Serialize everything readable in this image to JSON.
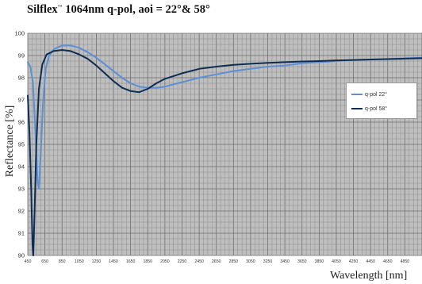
{
  "chart_data": {
    "type": "line",
    "title_main": "Silflex",
    "title_mark": "™",
    "title_rest": " 1064nm q-pol, aoi = 22°& 58°",
    "xlabel": "Wavelength [nm]",
    "ylabel": "Reflectance [%]",
    "xlim": [
      450,
      5050
    ],
    "ylim": [
      90,
      100
    ],
    "x_ticks": [
      450,
      650,
      850,
      1050,
      1250,
      1450,
      1650,
      1850,
      2050,
      2250,
      2450,
      2650,
      2850,
      3050,
      3250,
      3450,
      3650,
      3850,
      4050,
      4250,
      4450,
      4650,
      4850
    ],
    "y_ticks": [
      90,
      91,
      92,
      93,
      94,
      95,
      96,
      97,
      98,
      99,
      100
    ],
    "grid": true,
    "legend_position": "right",
    "series": [
      {
        "name": "q-pol 22°",
        "color": "#5b8fd6",
        "points": [
          [
            450,
            98.7
          ],
          [
            480,
            98.5
          ],
          [
            510,
            97.8
          ],
          [
            540,
            95.5
          ],
          [
            565,
            93.3
          ],
          [
            580,
            93.0
          ],
          [
            600,
            94.5
          ],
          [
            630,
            97.0
          ],
          [
            660,
            98.4
          ],
          [
            700,
            99.0
          ],
          [
            760,
            99.3
          ],
          [
            850,
            99.45
          ],
          [
            950,
            99.45
          ],
          [
            1050,
            99.35
          ],
          [
            1150,
            99.15
          ],
          [
            1250,
            98.9
          ],
          [
            1350,
            98.6
          ],
          [
            1450,
            98.3
          ],
          [
            1550,
            98.0
          ],
          [
            1650,
            97.75
          ],
          [
            1750,
            97.6
          ],
          [
            1850,
            97.55
          ],
          [
            1950,
            97.55
          ],
          [
            2050,
            97.6
          ],
          [
            2250,
            97.8
          ],
          [
            2450,
            98.0
          ],
          [
            2650,
            98.15
          ],
          [
            2850,
            98.3
          ],
          [
            3050,
            98.4
          ],
          [
            3250,
            98.5
          ],
          [
            3450,
            98.55
          ],
          [
            3650,
            98.65
          ],
          [
            3850,
            98.7
          ],
          [
            4050,
            98.75
          ],
          [
            4250,
            98.8
          ],
          [
            4450,
            98.82
          ],
          [
            4650,
            98.85
          ],
          [
            4850,
            98.87
          ],
          [
            5050,
            98.9
          ]
        ]
      },
      {
        "name": "q-pol 58°",
        "color": "#0d2d52",
        "points": [
          [
            450,
            97.2
          ],
          [
            470,
            95.5
          ],
          [
            490,
            93.0
          ],
          [
            505,
            90.5
          ],
          [
            515,
            90.0
          ],
          [
            530,
            92.0
          ],
          [
            550,
            95.0
          ],
          [
            580,
            97.5
          ],
          [
            620,
            98.6
          ],
          [
            670,
            99.05
          ],
          [
            750,
            99.2
          ],
          [
            850,
            99.25
          ],
          [
            950,
            99.2
          ],
          [
            1050,
            99.05
          ],
          [
            1150,
            98.85
          ],
          [
            1250,
            98.55
          ],
          [
            1350,
            98.2
          ],
          [
            1450,
            97.85
          ],
          [
            1550,
            97.55
          ],
          [
            1650,
            97.4
          ],
          [
            1750,
            97.35
          ],
          [
            1850,
            97.5
          ],
          [
            1950,
            97.75
          ],
          [
            2050,
            97.95
          ],
          [
            2250,
            98.2
          ],
          [
            2450,
            98.4
          ],
          [
            2650,
            98.5
          ],
          [
            2850,
            98.58
          ],
          [
            3050,
            98.63
          ],
          [
            3250,
            98.67
          ],
          [
            3450,
            98.7
          ],
          [
            3650,
            98.73
          ],
          [
            3850,
            98.75
          ],
          [
            4050,
            98.78
          ],
          [
            4250,
            98.8
          ],
          [
            4450,
            98.82
          ],
          [
            4650,
            98.84
          ],
          [
            4850,
            98.86
          ],
          [
            5050,
            98.88
          ]
        ]
      }
    ]
  }
}
